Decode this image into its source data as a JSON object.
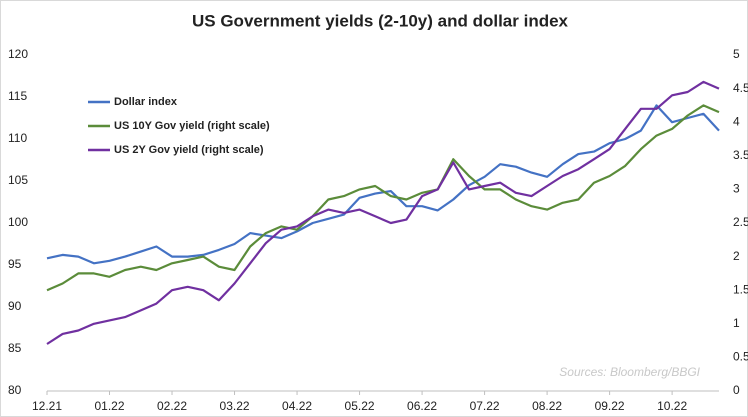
{
  "chart_data": {
    "type": "line",
    "title": "US Government yields (2-10y) and dollar index",
    "annotation": "Sources: Bloomberg/BBGI",
    "categories": [
      "12.21",
      null,
      null,
      null,
      "01.22",
      null,
      null,
      null,
      "02.22",
      null,
      null,
      null,
      "03.22",
      null,
      null,
      null,
      "04.22",
      null,
      null,
      null,
      "05.22",
      null,
      null,
      null,
      "06.22",
      null,
      null,
      null,
      "07.22",
      null,
      null,
      null,
      "08.22",
      null,
      null,
      null,
      "09.22",
      null,
      null,
      null,
      "10.22",
      null,
      null,
      null
    ],
    "series": [
      {
        "name": "Dollar index",
        "color": "#4472c4",
        "values": [
          95.8,
          96.2,
          96,
          95.2,
          95.5,
          96,
          96.6,
          97.2,
          96,
          96,
          96.2,
          96.8,
          97.5,
          98.8,
          98.5,
          98.2,
          99,
          100,
          100.5,
          101,
          103,
          103.5,
          103.8,
          102,
          102,
          101.5,
          102.8,
          104.5,
          105.5,
          107,
          106.7,
          106,
          105.5,
          107,
          108.2,
          108.5,
          109.5,
          110,
          111,
          114,
          112,
          112.5,
          113,
          111
        ]
      },
      {
        "name": "US 10Y Gov yield (right scale)",
        "color": "#5b8c3a",
        "axis": "y2",
        "values": [
          1.5,
          1.6,
          1.75,
          1.75,
          1.7,
          1.8,
          1.85,
          1.8,
          1.9,
          1.95,
          2.0,
          1.85,
          1.8,
          2.15,
          2.35,
          2.45,
          2.4,
          2.6,
          2.85,
          2.9,
          3.0,
          3.05,
          2.9,
          2.85,
          2.95,
          3.0,
          3.45,
          3.2,
          3.0,
          3.0,
          2.85,
          2.75,
          2.7,
          2.8,
          2.85,
          3.1,
          3.2,
          3.35,
          3.6,
          3.8,
          3.9,
          4.1,
          4.25,
          4.15
        ]
      },
      {
        "name": "US 2Y Gov yield (right scale)",
        "color": "#7030a0",
        "axis": "y2",
        "values": [
          0.7,
          0.85,
          0.9,
          1.0,
          1.05,
          1.1,
          1.2,
          1.3,
          1.5,
          1.55,
          1.5,
          1.35,
          1.6,
          1.9,
          2.2,
          2.4,
          2.45,
          2.6,
          2.7,
          2.65,
          2.7,
          2.6,
          2.5,
          2.55,
          2.9,
          3.0,
          3.4,
          3.0,
          3.05,
          3.1,
          2.95,
          2.9,
          3.05,
          3.2,
          3.3,
          3.45,
          3.6,
          3.9,
          4.2,
          4.2,
          4.4,
          4.45,
          4.6,
          4.5
        ]
      }
    ],
    "ylim": [
      80,
      120
    ],
    "yticks": [
      80,
      85,
      90,
      95,
      100,
      105,
      110,
      115,
      120
    ],
    "y2lim": [
      0,
      5
    ],
    "y2ticks": [
      0,
      0.5,
      1,
      1.5,
      2,
      2.5,
      3,
      3.5,
      4,
      4.5,
      5
    ],
    "grid": false,
    "legend": "upper left"
  }
}
